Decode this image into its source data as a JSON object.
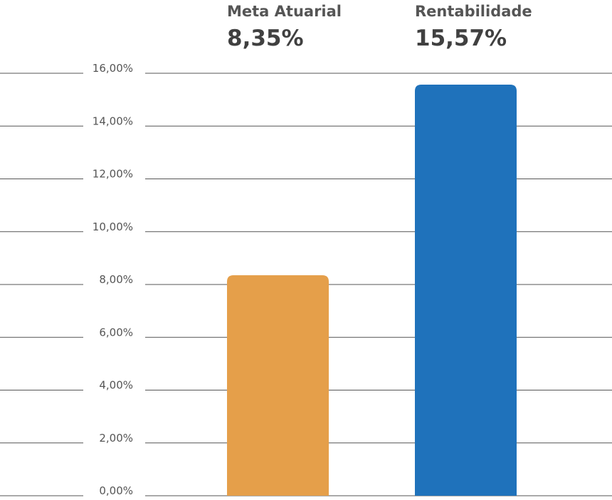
{
  "chart_data": {
    "type": "bar",
    "categories": [
      "Meta Atuarial",
      "Rentabilidade"
    ],
    "values": [
      8.35,
      15.57
    ],
    "value_labels": [
      "8,35%",
      "15,57%"
    ],
    "colors": [
      "#e59f4a",
      "#1f72bb"
    ],
    "ylim": [
      0,
      16
    ],
    "yticks": [
      0,
      2,
      4,
      6,
      8,
      10,
      12,
      14,
      16
    ],
    "ytick_labels": [
      "0,00%",
      "2,00%",
      "4,00%",
      "6,00%",
      "8,00%",
      "10,00%",
      "12,00%",
      "14,00%",
      "16,00%"
    ],
    "grid": true,
    "legend": "above-bars"
  }
}
